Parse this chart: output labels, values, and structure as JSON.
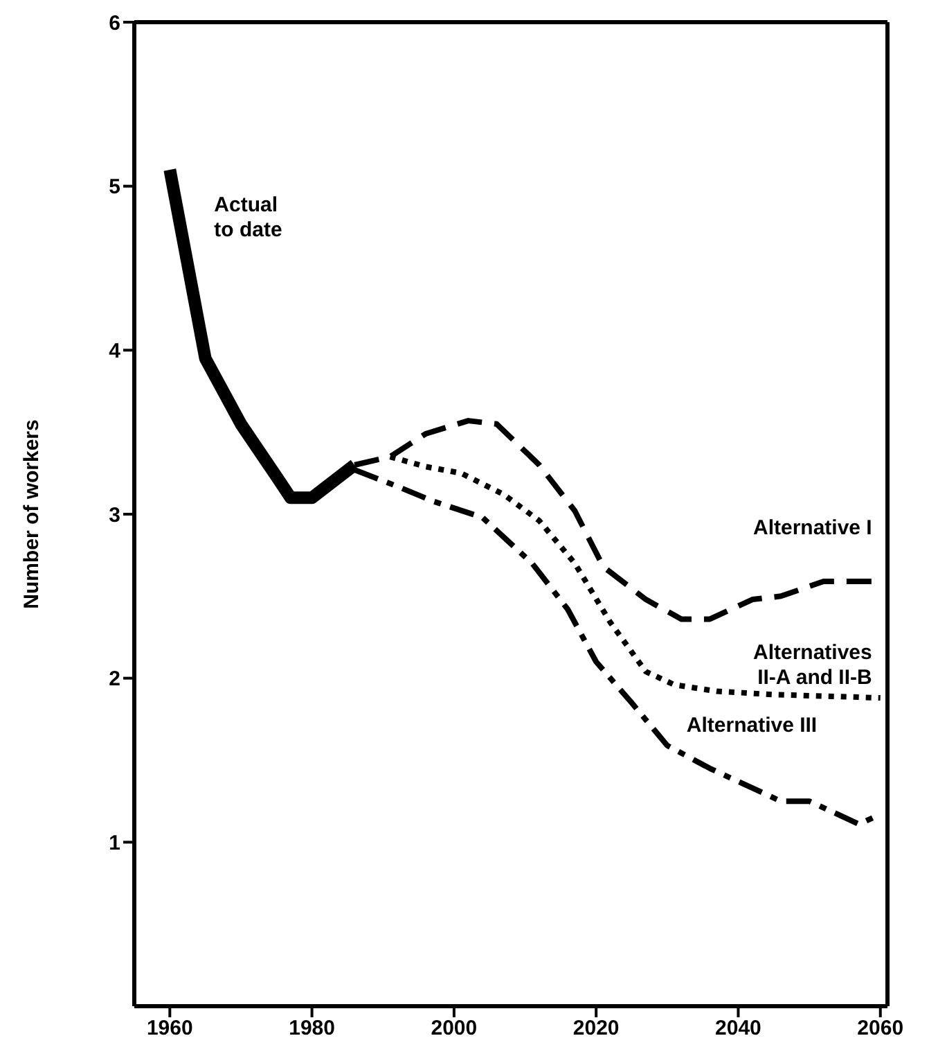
{
  "chart_data": {
    "type": "line",
    "ylabel": "Number of workers",
    "xlim": [
      1955,
      2061
    ],
    "xticks": [
      1960,
      1980,
      2000,
      2020,
      2040,
      2060
    ],
    "ylim": [
      0,
      6
    ],
    "yticks": [
      1,
      2,
      3,
      4,
      5,
      6
    ],
    "series": [
      {
        "name": "Actual to date",
        "color": "#000000",
        "line_style": "solid",
        "x": [
          1960,
          1965,
          1970,
          1975,
          1977,
          1980,
          1986
        ],
        "values": [
          5.1,
          3.95,
          3.55,
          3.23,
          3.1,
          3.1,
          3.3
        ]
      },
      {
        "name": "Alternative I",
        "color": "#000000",
        "line_style": "dashed",
        "x": [
          1986,
          1991,
          1996,
          2002,
          2006,
          2012,
          2017,
          2021,
          2027,
          2032,
          2036,
          2042,
          2046,
          2052,
          2060
        ],
        "values": [
          3.3,
          3.35,
          3.49,
          3.57,
          3.55,
          3.3,
          3.02,
          2.68,
          2.48,
          2.36,
          2.36,
          2.48,
          2.5,
          2.59,
          2.59
        ]
      },
      {
        "name": "Alternatives II-A and II-B",
        "color": "#000000",
        "line_style": "dotted",
        "x": [
          1991,
          1996,
          2001,
          2007,
          2012,
          2017,
          2022,
          2027,
          2031,
          2037,
          2045,
          2060
        ],
        "values": [
          3.35,
          3.29,
          3.25,
          3.12,
          2.96,
          2.7,
          2.34,
          2.04,
          1.96,
          1.92,
          1.9,
          1.88
        ]
      },
      {
        "name": "Alternative III",
        "color": "#000000",
        "line_style": "dashdot",
        "x": [
          1986,
          1992,
          1997,
          2004,
          2011,
          2016,
          2020,
          2025,
          2030,
          2036,
          2046,
          2050,
          2057,
          2060
        ],
        "values": [
          3.27,
          3.17,
          3.08,
          2.98,
          2.7,
          2.42,
          2.1,
          1.85,
          1.59,
          1.45,
          1.25,
          1.25,
          1.11,
          1.17
        ]
      }
    ]
  }
}
